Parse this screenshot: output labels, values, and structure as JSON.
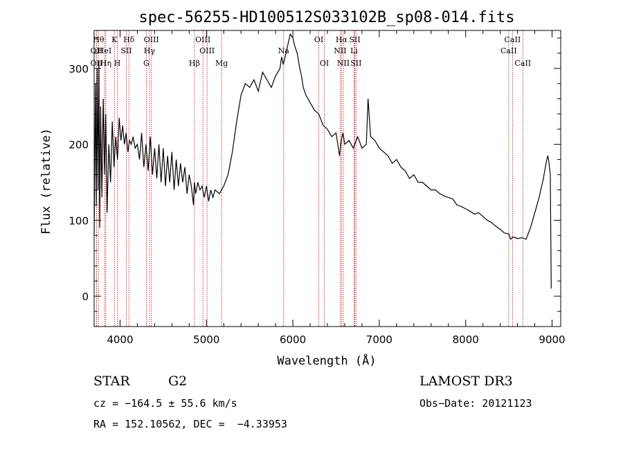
{
  "chart_data": {
    "type": "line",
    "title": "spec-56255-HD100512S033102B_sp08-014.fits",
    "xlabel": "Wavelength (Å)",
    "ylabel": "Flux (relative)",
    "xlim": [
      3700,
      9100
    ],
    "ylim": [
      -40,
      350
    ],
    "xticks": [
      4000,
      5000,
      6000,
      7000,
      8000,
      9000
    ],
    "xtick_labels": [
      "4000",
      "5000",
      "6000",
      "7000",
      "8000",
      "9000"
    ],
    "yticks": [
      0,
      100,
      200,
      300
    ],
    "ytick_labels": [
      "0",
      "100",
      "200",
      "300"
    ],
    "grid": false,
    "series": [
      {
        "x": [
          3700,
          3715,
          3725,
          3735,
          3745,
          3755,
          3765,
          3775,
          3790,
          3805,
          3820,
          3835,
          3850,
          3870,
          3890,
          3910,
          3930,
          3950,
          3970,
          3990,
          4010,
          4030,
          4050,
          4070,
          4090,
          4110,
          4130,
          4150,
          4175,
          4200,
          4225,
          4250,
          4275,
          4300,
          4325,
          4350,
          4375,
          4400,
          4425,
          4450,
          4475,
          4500,
          4525,
          4550,
          4575,
          4600,
          4625,
          4650,
          4675,
          4700,
          4725,
          4750,
          4775,
          4800,
          4825,
          4850,
          4860,
          4875,
          4900,
          4925,
          4950,
          4975,
          5000,
          5025,
          5050,
          5075,
          5100,
          5150,
          5200,
          5250,
          5300,
          5350,
          5400,
          5450,
          5500,
          5550,
          5600,
          5650,
          5700,
          5750,
          5800,
          5850,
          5870,
          5890,
          5920,
          5950,
          5970,
          6000,
          6020,
          6050,
          6080,
          6100,
          6120,
          6150,
          6200,
          6250,
          6300,
          6350,
          6400,
          6450,
          6500,
          6540,
          6560,
          6580,
          6600,
          6650,
          6700,
          6750,
          6800,
          6850,
          6870,
          6900,
          6950,
          7000,
          7050,
          7100,
          7150,
          7200,
          7250,
          7300,
          7350,
          7400,
          7450,
          7500,
          7550,
          7600,
          7650,
          7700,
          7750,
          7800,
          7850,
          7900,
          7950,
          8000,
          8050,
          8100,
          8150,
          8200,
          8250,
          8300,
          8350,
          8400,
          8450,
          8500,
          8520,
          8550,
          8600,
          8650,
          8700,
          8750,
          8800,
          8850,
          8900,
          8930,
          8950,
          8960,
          8980,
          8990
        ],
        "y": [
          80,
          280,
          120,
          300,
          140,
          310,
          90,
          250,
          130,
          260,
          160,
          240,
          110,
          200,
          150,
          230,
          170,
          210,
          180,
          235,
          205,
          225,
          200,
          215,
          190,
          205,
          200,
          210,
          195,
          200,
          180,
          215,
          170,
          200,
          165,
          210,
          160,
          195,
          155,
          200,
          150,
          195,
          145,
          185,
          150,
          190,
          140,
          180,
          145,
          175,
          150,
          170,
          135,
          160,
          145,
          120,
          150,
          135,
          150,
          140,
          145,
          130,
          145,
          125,
          140,
          130,
          140,
          135,
          145,
          160,
          190,
          230,
          265,
          280,
          275,
          285,
          270,
          295,
          285,
          275,
          290,
          300,
          315,
          305,
          320,
          335,
          345,
          340,
          330,
          320,
          300,
          290,
          275,
          265,
          255,
          245,
          240,
          225,
          220,
          210,
          215,
          185,
          205,
          215,
          200,
          205,
          195,
          210,
          195,
          200,
          260,
          210,
          205,
          195,
          190,
          185,
          175,
          180,
          170,
          165,
          155,
          160,
          150,
          150,
          145,
          140,
          140,
          135,
          132,
          130,
          128,
          120,
          118,
          115,
          112,
          108,
          110,
          105,
          100,
          97,
          92,
          88,
          83,
          82,
          75,
          78,
          76,
          77,
          75,
          90,
          110,
          130,
          155,
          175,
          185,
          180,
          160,
          10
        ]
      }
    ],
    "spectral_lines": [
      {
        "label": "Hθ",
        "wl": 3750,
        "row": 1
      },
      {
        "label": "K",
        "wl": 3934,
        "row": 1
      },
      {
        "label": "Hδ",
        "wl": 4102,
        "row": 1
      },
      {
        "label": "OIII",
        "wl": 4363,
        "row": 1
      },
      {
        "label": "OIII",
        "wl": 4959,
        "row": 1
      },
      {
        "label": "Na",
        "wl": 5893,
        "row": 2
      },
      {
        "label": "OI",
        "wl": 6300,
        "row": 1
      },
      {
        "label": "Hα",
        "wl": 6563,
        "row": 1
      },
      {
        "label": "SII",
        "wl": 6717,
        "row": 1
      },
      {
        "label": "CaII",
        "wl": 8542,
        "row": 1
      },
      {
        "label": "OII",
        "wl": 3727,
        "row": 2
      },
      {
        "label": "HeI",
        "wl": 3820,
        "row": 2
      },
      {
        "label": "SII",
        "wl": 4072,
        "row": 2
      },
      {
        "label": "Hγ",
        "wl": 4340,
        "row": 2
      },
      {
        "label": "OIII",
        "wl": 5007,
        "row": 2
      },
      {
        "label": "NII",
        "wl": 6548,
        "row": 2
      },
      {
        "label": "Li",
        "wl": 6708,
        "row": 2
      },
      {
        "label": "CaII",
        "wl": 8498,
        "row": 2
      },
      {
        "label": "OII",
        "wl": 3727,
        "row": 3
      },
      {
        "label": "Hη",
        "wl": 3835,
        "row": 3
      },
      {
        "label": "H",
        "wl": 3969,
        "row": 3
      },
      {
        "label": "G",
        "wl": 4304,
        "row": 3
      },
      {
        "label": "Hβ",
        "wl": 4861,
        "row": 3
      },
      {
        "label": "Mg",
        "wl": 5175,
        "row": 3
      },
      {
        "label": "OI",
        "wl": 6364,
        "row": 3
      },
      {
        "label": "NII",
        "wl": 6584,
        "row": 3
      },
      {
        "label": "SII",
        "wl": 6731,
        "row": 3
      },
      {
        "label": "CaII",
        "wl": 8662,
        "row": 3
      }
    ]
  },
  "info": {
    "object_type": "STAR",
    "subclass": "G2",
    "survey": "LAMOST DR3",
    "cz": "cz = −164.5 ± 55.6 km/s",
    "obs_date": "Obs−Date: 20121123",
    "coords": "RA = 152.10562, DEC =  −4.33953"
  },
  "colors": {
    "spectrum": "#000000",
    "line_marker": "#c00000"
  }
}
